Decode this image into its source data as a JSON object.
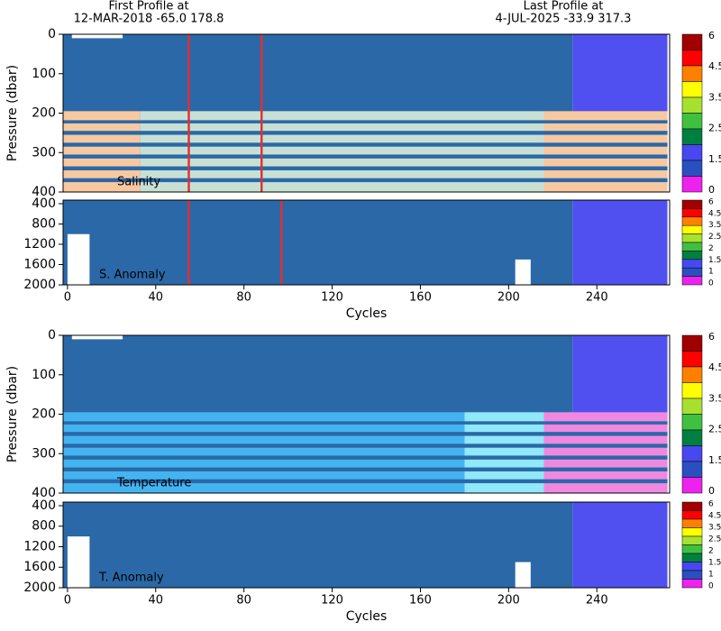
{
  "header": {
    "first_label": "First Profile at",
    "first_value": "12-MAR-2018   -65.0  178.8",
    "last_label": "Last Profile at",
    "last_value": "4-JUL-2025   -33.9  317.3"
  },
  "chart_data": [
    {
      "type": "heatmap",
      "label": "Salinity",
      "ylabel": "Pressure (dbar)",
      "xlim": [
        -2,
        273
      ],
      "ylim": [
        0,
        400
      ],
      "y_inverted": true,
      "yticks": [
        0,
        100,
        200,
        300,
        400
      ],
      "colorbar": {
        "colors": [
          "#a00000",
          "#ff0000",
          "#ff8000",
          "#ffff00",
          "#a8e030",
          "#40c040",
          "#008040",
          "#4848f0",
          "#2a50c0",
          "#ee22ee"
        ],
        "ticks": [
          6,
          4.5,
          3.5,
          2.5,
          1.5,
          0
        ]
      },
      "regions": [
        {
          "x": [
            -2,
            229
          ],
          "y": [
            0,
            400
          ],
          "color": "#2a68a8"
        },
        {
          "x": [
            229,
            272
          ],
          "y": [
            0,
            400
          ],
          "color": "#5050f0"
        },
        {
          "x": [
            -2,
            33
          ],
          "y": [
            195,
            400
          ],
          "color": "#f8c8a0"
        },
        {
          "x": [
            33,
            216
          ],
          "y": [
            195,
            400
          ],
          "color": "#c8e0d4"
        },
        {
          "x": [
            216,
            272
          ],
          "y": [
            195,
            400
          ],
          "color": "#f8c8a0"
        },
        {
          "x": [
            -2,
            272
          ],
          "y": [
            218,
            226
          ],
          "color": "#2a68a8"
        },
        {
          "x": [
            -2,
            272
          ],
          "y": [
            245,
            255
          ],
          "color": "#2a68a8"
        },
        {
          "x": [
            -2,
            272
          ],
          "y": [
            275,
            285
          ],
          "color": "#2a68a8"
        },
        {
          "x": [
            -2,
            272
          ],
          "y": [
            305,
            315
          ],
          "color": "#2a68a8"
        },
        {
          "x": [
            -2,
            272
          ],
          "y": [
            335,
            345
          ],
          "color": "#2a68a8"
        },
        {
          "x": [
            -2,
            272
          ],
          "y": [
            365,
            375
          ],
          "color": "#2a68a8"
        },
        {
          "x": [
            2,
            25
          ],
          "y": [
            0,
            10
          ],
          "color": "#ffffff"
        },
        {
          "x": [
            54.5,
            55.5
          ],
          "y": [
            0,
            400
          ],
          "color": "#e03030"
        },
        {
          "x": [
            87.5,
            88.5
          ],
          "y": [
            0,
            400
          ],
          "color": "#e03030"
        }
      ]
    },
    {
      "type": "heatmap",
      "label": "S. Anomaly",
      "xlabel": "Cycles",
      "xlim": [
        -2,
        273
      ],
      "ylim": [
        330,
        2000
      ],
      "y_inverted": true,
      "yticks": [
        400,
        800,
        1200,
        1600,
        2000
      ],
      "xticks": [
        0,
        40,
        80,
        120,
        160,
        200,
        240
      ],
      "colorbar": {
        "colors": [
          "#a00000",
          "#ff0000",
          "#ff8000",
          "#ffff00",
          "#a8e030",
          "#40c040",
          "#008040",
          "#4848f0",
          "#2a50c0",
          "#ee22ee"
        ],
        "ticks": [
          6,
          4.5,
          3.5,
          2.5,
          2,
          1.5,
          1,
          0
        ]
      },
      "regions": [
        {
          "x": [
            -2,
            229
          ],
          "y": [
            330,
            2000
          ],
          "color": "#2a68a8"
        },
        {
          "x": [
            229,
            272
          ],
          "y": [
            330,
            2000
          ],
          "color": "#5050f0"
        },
        {
          "x": [
            0,
            10
          ],
          "y": [
            1000,
            2000
          ],
          "color": "#ffffff"
        },
        {
          "x": [
            203,
            210
          ],
          "y": [
            1500,
            2000
          ],
          "color": "#ffffff"
        },
        {
          "x": [
            54.5,
            55.5
          ],
          "y": [
            330,
            2000
          ],
          "color": "#e03030"
        },
        {
          "x": [
            96.5,
            97.5
          ],
          "y": [
            330,
            2000
          ],
          "color": "#e03030"
        }
      ]
    },
    {
      "type": "heatmap",
      "label": "Temperature",
      "ylabel": "Pressure (dbar)",
      "xlim": [
        -2,
        273
      ],
      "ylim": [
        0,
        400
      ],
      "y_inverted": true,
      "yticks": [
        0,
        100,
        200,
        300,
        400
      ],
      "colorbar": {
        "colors": [
          "#a00000",
          "#ff0000",
          "#ff8000",
          "#ffff00",
          "#a8e030",
          "#40c040",
          "#008040",
          "#4848f0",
          "#2a50c0",
          "#ee22ee"
        ],
        "ticks": [
          6,
          4.5,
          3.5,
          2.5,
          1.5,
          0
        ]
      },
      "regions": [
        {
          "x": [
            -2,
            229
          ],
          "y": [
            0,
            400
          ],
          "color": "#2a68a8"
        },
        {
          "x": [
            229,
            272
          ],
          "y": [
            0,
            400
          ],
          "color": "#5050f0"
        },
        {
          "x": [
            -2,
            180
          ],
          "y": [
            195,
            400
          ],
          "color": "#44b4f0"
        },
        {
          "x": [
            180,
            216
          ],
          "y": [
            195,
            400
          ],
          "color": "#90e8f8"
        },
        {
          "x": [
            216,
            272
          ],
          "y": [
            195,
            400
          ],
          "color": "#f088e0"
        },
        {
          "x": [
            -2,
            272
          ],
          "y": [
            218,
            226
          ],
          "color": "#2a68a8"
        },
        {
          "x": [
            -2,
            272
          ],
          "y": [
            245,
            255
          ],
          "color": "#2a68a8"
        },
        {
          "x": [
            -2,
            272
          ],
          "y": [
            275,
            285
          ],
          "color": "#2a68a8"
        },
        {
          "x": [
            -2,
            272
          ],
          "y": [
            305,
            315
          ],
          "color": "#2a68a8"
        },
        {
          "x": [
            -2,
            272
          ],
          "y": [
            335,
            345
          ],
          "color": "#2a68a8"
        },
        {
          "x": [
            -2,
            272
          ],
          "y": [
            365,
            375
          ],
          "color": "#2a68a8"
        },
        {
          "x": [
            2,
            25
          ],
          "y": [
            0,
            10
          ],
          "color": "#ffffff"
        }
      ]
    },
    {
      "type": "heatmap",
      "label": "T. Anomaly",
      "xlabel": "Cycles",
      "xlim": [
        -2,
        273
      ],
      "ylim": [
        330,
        2000
      ],
      "y_inverted": true,
      "yticks": [
        400,
        800,
        1200,
        1600,
        2000
      ],
      "xticks": [
        0,
        40,
        80,
        120,
        160,
        200,
        240
      ],
      "colorbar": {
        "colors": [
          "#a00000",
          "#ff0000",
          "#ff8000",
          "#ffff00",
          "#a8e030",
          "#40c040",
          "#008040",
          "#4848f0",
          "#2a50c0",
          "#ee22ee"
        ],
        "ticks": [
          6,
          4.5,
          3.5,
          2.5,
          2,
          1.5,
          1,
          0
        ]
      },
      "regions": [
        {
          "x": [
            -2,
            229
          ],
          "y": [
            330,
            2000
          ],
          "color": "#2a68a8"
        },
        {
          "x": [
            229,
            272
          ],
          "y": [
            330,
            2000
          ],
          "color": "#5050f0"
        },
        {
          "x": [
            0,
            10
          ],
          "y": [
            1000,
            2000
          ],
          "color": "#ffffff"
        },
        {
          "x": [
            203,
            210
          ],
          "y": [
            1500,
            2000
          ],
          "color": "#ffffff"
        }
      ]
    }
  ]
}
